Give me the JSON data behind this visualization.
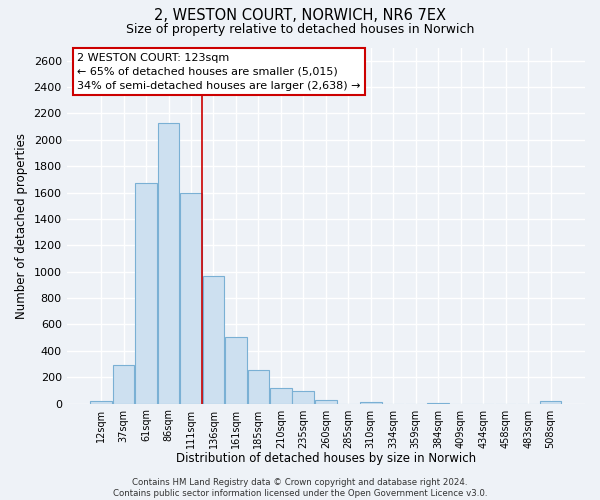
{
  "title": "2, WESTON COURT, NORWICH, NR6 7EX",
  "subtitle": "Size of property relative to detached houses in Norwich",
  "xlabel": "Distribution of detached houses by size in Norwich",
  "ylabel": "Number of detached properties",
  "bar_color": "#cde0f0",
  "bar_edge_color": "#7ab0d4",
  "bin_labels": [
    "12sqm",
    "37sqm",
    "61sqm",
    "86sqm",
    "111sqm",
    "136sqm",
    "161sqm",
    "185sqm",
    "210sqm",
    "235sqm",
    "260sqm",
    "285sqm",
    "310sqm",
    "334sqm",
    "359sqm",
    "384sqm",
    "409sqm",
    "434sqm",
    "458sqm",
    "483sqm",
    "508sqm"
  ],
  "bar_heights": [
    20,
    295,
    1670,
    2130,
    1600,
    965,
    505,
    255,
    120,
    95,
    30,
    0,
    15,
    0,
    0,
    5,
    0,
    0,
    0,
    0,
    20
  ],
  "ylim": [
    0,
    2700
  ],
  "yticks": [
    0,
    200,
    400,
    600,
    800,
    1000,
    1200,
    1400,
    1600,
    1800,
    2000,
    2200,
    2400,
    2600
  ],
  "vline_x": 4.5,
  "vline_color": "#cc0000",
  "annotation_line1": "2 WESTON COURT: 123sqm",
  "annotation_line2": "← 65% of detached houses are smaller (5,015)",
  "annotation_line3": "34% of semi-detached houses are larger (2,638) →",
  "footnote": "Contains HM Land Registry data © Crown copyright and database right 2024.\nContains public sector information licensed under the Open Government Licence v3.0.",
  "background_color": "#eef2f7",
  "grid_color": "#ffffff",
  "box_edge_color": "#cc0000",
  "box_face_color": "#ffffff"
}
